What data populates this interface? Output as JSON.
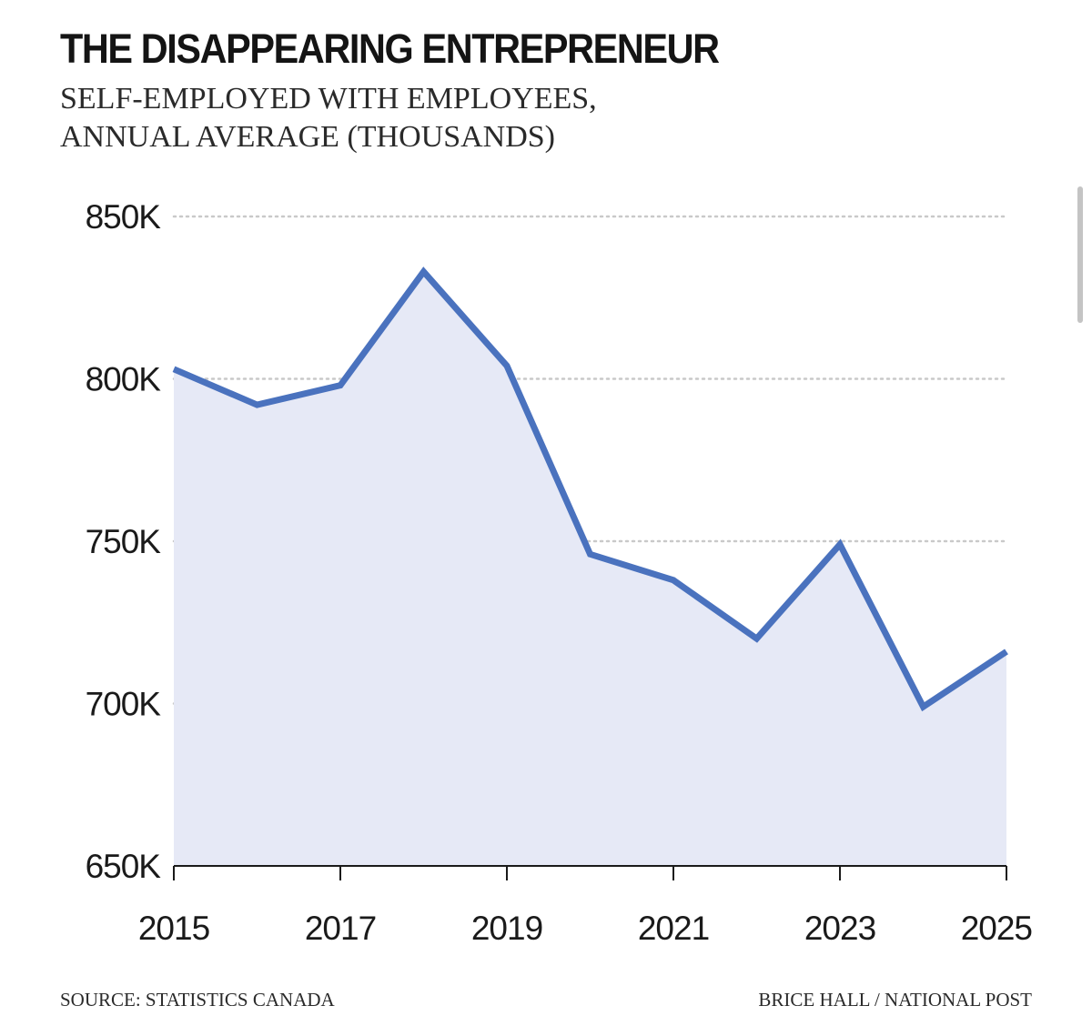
{
  "chart_data": {
    "type": "area",
    "title": "THE DISAPPEARING ENTREPRENEUR",
    "subtitle_lines": [
      "SELF-EMPLOYED WITH EMPLOYEES,",
      "ANNUAL AVERAGE (THOUSANDS)"
    ],
    "x": [
      2015,
      2016,
      2017,
      2018,
      2019,
      2020,
      2021,
      2022,
      2023,
      2024,
      2025
    ],
    "values": [
      803,
      792,
      798,
      833,
      804,
      746,
      738,
      720,
      749,
      699,
      716
    ],
    "xticks": [
      2015,
      2017,
      2019,
      2021,
      2023,
      2025
    ],
    "xtick_labels": [
      "2015",
      "2017",
      "2019",
      "2021",
      "2023",
      "2025"
    ],
    "yticks": [
      650,
      700,
      750,
      800,
      850
    ],
    "ytick_labels": [
      "650K",
      "700K",
      "750K",
      "800K",
      "850K"
    ],
    "ylim": [
      650,
      850
    ],
    "xlim": [
      2015,
      2025
    ],
    "grid": true,
    "xlabel": "",
    "ylabel": "",
    "line_color": "#4a72be",
    "fill_color": "#e6e9f6",
    "grid_color": "#c9c9c9"
  },
  "footer": {
    "source": "SOURCE: STATISTICS CANADA",
    "credit": "BRICE HALL / NATIONAL POST"
  }
}
